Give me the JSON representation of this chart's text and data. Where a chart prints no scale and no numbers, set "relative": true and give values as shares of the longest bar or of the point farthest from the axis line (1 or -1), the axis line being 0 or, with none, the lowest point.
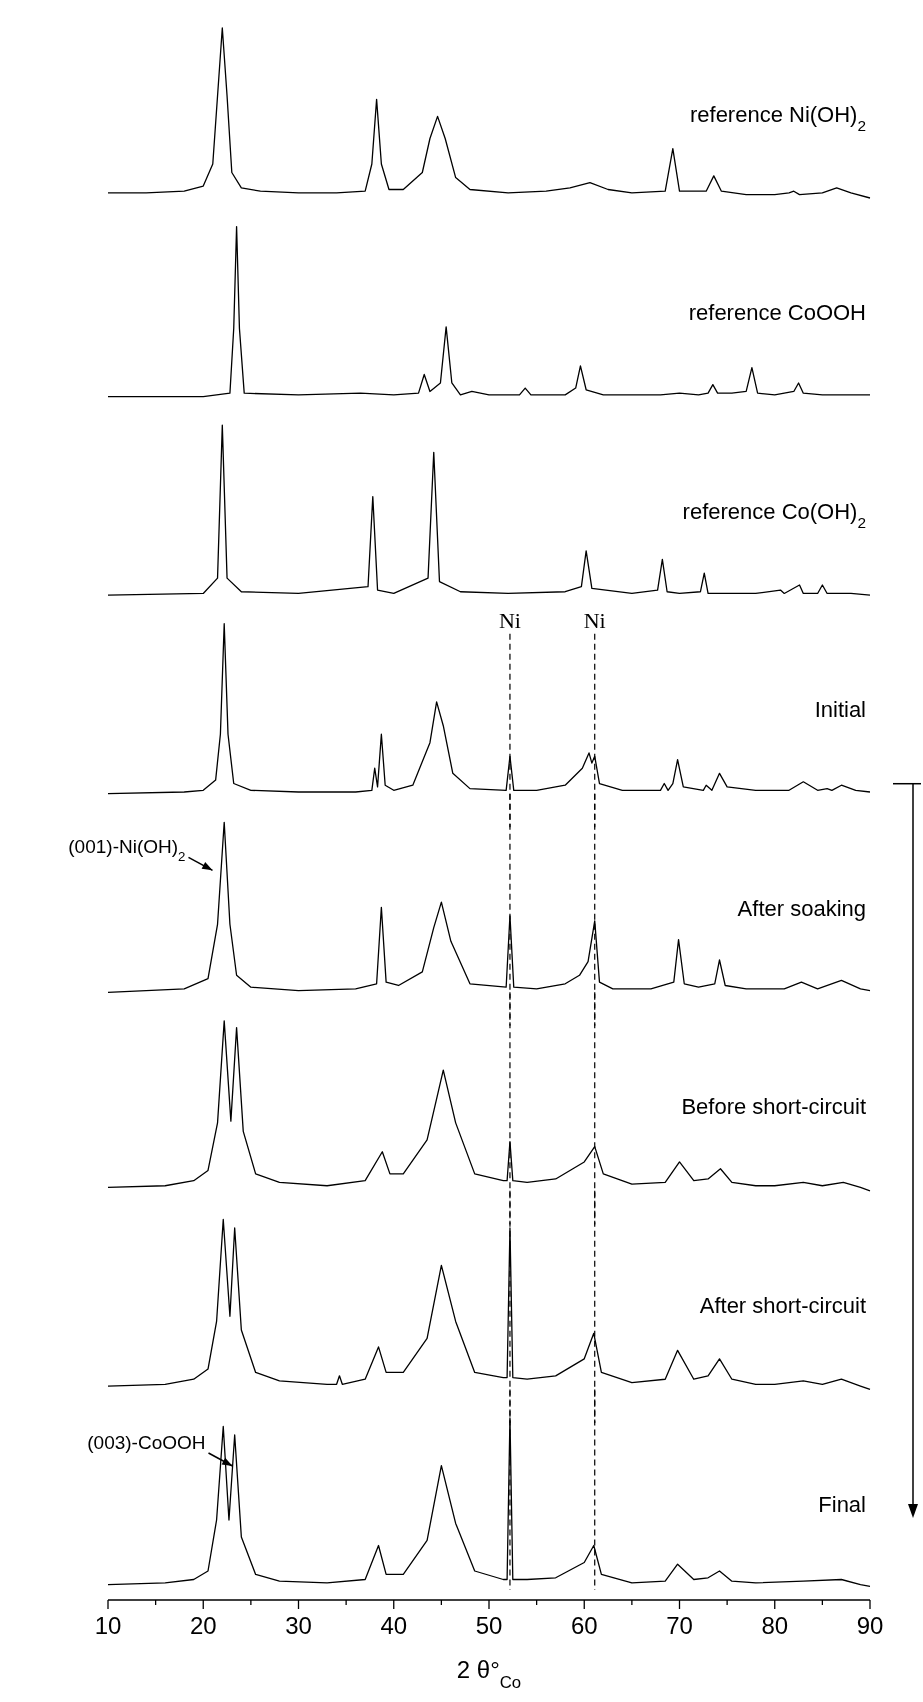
{
  "chart_data": [
    {
      "type": "line",
      "relative": true,
      "xlim": [
        10,
        90
      ],
      "tick_labels": false,
      "series": [
        {
          "name": "reference Ni(OH)$_{2}$",
          "color": "#000000",
          "x": [
            10,
            14,
            18,
            20,
            21,
            21.5,
            22,
            22.5,
            23,
            24,
            26,
            30,
            34,
            37,
            37.7,
            38.2,
            38.7,
            39.5,
            41,
            43,
            43.8,
            44.6,
            45.4,
            46.5,
            48,
            52,
            56,
            58.5,
            60.6,
            62.5,
            65,
            68.5,
            69.3,
            70,
            72.8,
            73.6,
            74.4,
            77,
            80,
            81.5,
            82,
            82.6,
            85,
            86.5,
            88,
            90
          ],
          "values": [
            0.03,
            0.03,
            0.04,
            0.07,
            0.2,
            0.6,
            1,
            0.6,
            0.15,
            0.06,
            0.04,
            0.03,
            0.03,
            0.04,
            0.2,
            0.58,
            0.2,
            0.05,
            0.05,
            0.15,
            0.35,
            0.48,
            0.35,
            0.12,
            0.05,
            0.03,
            0.04,
            0.06,
            0.09,
            0.05,
            0.03,
            0.04,
            0.29,
            0.04,
            0.04,
            0.13,
            0.04,
            0.02,
            0.02,
            0.03,
            0.04,
            0.02,
            0.03,
            0.06,
            0.03,
            0
          ]
        }
      ]
    },
    {
      "type": "line",
      "relative": true,
      "xlim": [
        10,
        90
      ],
      "tick_labels": false,
      "series": [
        {
          "name": "reference CoOOH",
          "color": "#000000",
          "x": [
            10,
            20,
            22.8,
            23.2,
            23.5,
            23.8,
            24.3,
            30,
            36.5,
            40,
            42.6,
            43.2,
            43.8,
            44.9,
            45.5,
            46.1,
            47,
            48.2,
            50,
            53.2,
            53.8,
            54.4,
            58,
            59.1,
            59.6,
            60.2,
            62,
            68,
            70,
            72,
            73,
            73.5,
            74,
            75.5,
            77,
            77.6,
            78.2,
            80,
            82,
            82.5,
            83,
            85,
            90
          ],
          "values": [
            0,
            0,
            0.02,
            0.4,
            1,
            0.4,
            0.02,
            0.01,
            0.02,
            0.01,
            0.02,
            0.13,
            0.03,
            0.08,
            0.41,
            0.08,
            0.01,
            0.03,
            0.01,
            0.01,
            0.05,
            0.01,
            0.01,
            0.05,
            0.18,
            0.04,
            0.01,
            0.01,
            0.02,
            0.01,
            0.02,
            0.07,
            0.02,
            0.02,
            0.03,
            0.17,
            0.02,
            0.01,
            0.03,
            0.08,
            0.02,
            0.01,
            0.01
          ]
        }
      ]
    },
    {
      "type": "line",
      "relative": true,
      "xlim": [
        10,
        90
      ],
      "tick_labels": false,
      "series": [
        {
          "name": "reference Co(OH)$_{2}$",
          "color": "#000000",
          "x": [
            10,
            20,
            21.5,
            22,
            22.5,
            24,
            30,
            37.3,
            37.8,
            38.3,
            40,
            43.6,
            44.2,
            44.8,
            47,
            52,
            58,
            59.7,
            60.2,
            60.8,
            65,
            67.7,
            68.2,
            68.7,
            70,
            72.2,
            72.6,
            73,
            78,
            80.6,
            81,
            82.6,
            83,
            84.5,
            85,
            85.5,
            88,
            90
          ],
          "values": [
            0,
            0.01,
            0.1,
            1,
            0.1,
            0.02,
            0.01,
            0.05,
            0.58,
            0.03,
            0.01,
            0.1,
            0.84,
            0.08,
            0.02,
            0.01,
            0.02,
            0.05,
            0.26,
            0.04,
            0.01,
            0.03,
            0.21,
            0.02,
            0.01,
            0.02,
            0.13,
            0.01,
            0.01,
            0.03,
            0.01,
            0.06,
            0.01,
            0.01,
            0.06,
            0.01,
            0.01,
            0
          ]
        }
      ]
    },
    {
      "type": "line",
      "relative": true,
      "xlim": [
        10,
        90
      ],
      "tick_labels": false,
      "ref_lines": [
        {
          "axis": "x",
          "value": 52.2,
          "label": "Ni",
          "color": "#000000",
          "line_style": "dashed"
        },
        {
          "axis": "x",
          "value": 61.1,
          "label": "Ni",
          "color": "#000000",
          "line_style": "dashed"
        }
      ],
      "series": [
        {
          "name": "Initial",
          "color": "#000000",
          "x": [
            10,
            18,
            20,
            21.3,
            21.8,
            22.2,
            22.6,
            23.2,
            25,
            30,
            36,
            37.7,
            38,
            38.3,
            38.7,
            39.1,
            40,
            42,
            43.8,
            44.5,
            45.2,
            46.2,
            48,
            51.8,
            52.2,
            52.6,
            55,
            58,
            59.8,
            60.5,
            60.8,
            61.1,
            61.6,
            64,
            68,
            68.4,
            68.8,
            69.3,
            69.8,
            70.4,
            72.5,
            72.8,
            73.4,
            74.2,
            75,
            78,
            81.5,
            83,
            84.5,
            85.5,
            86,
            87,
            88.5,
            90
          ],
          "values": [
            0,
            0.01,
            0.02,
            0.08,
            0.35,
            1,
            0.35,
            0.06,
            0.02,
            0.01,
            0.01,
            0.02,
            0.15,
            0.04,
            0.35,
            0.05,
            0.02,
            0.05,
            0.3,
            0.54,
            0.4,
            0.12,
            0.03,
            0.02,
            0.22,
            0.02,
            0.02,
            0.05,
            0.15,
            0.24,
            0.18,
            0.22,
            0.06,
            0.02,
            0.02,
            0.06,
            0.02,
            0.06,
            0.2,
            0.04,
            0.02,
            0.05,
            0.02,
            0.12,
            0.04,
            0.02,
            0.02,
            0.07,
            0.02,
            0.03,
            0.02,
            0.05,
            0.02,
            0.01
          ]
        }
      ]
    },
    {
      "type": "line",
      "relative": true,
      "xlim": [
        10,
        90
      ],
      "tick_labels": false,
      "annotations": [
        {
          "text": "(001)-Ni(OH)$_{2}$",
          "x": 21.6,
          "y": 0.7
        }
      ],
      "ref_lines": [
        {
          "axis": "x",
          "value": 52.2,
          "color": "#000000",
          "line_style": "dashed"
        },
        {
          "axis": "x",
          "value": 61.1,
          "color": "#000000",
          "line_style": "dashed"
        }
      ],
      "series": [
        {
          "name": "After soaking",
          "color": "#000000",
          "x": [
            10,
            18,
            20.5,
            21.5,
            22.2,
            22.8,
            23.5,
            25,
            30,
            36,
            38.2,
            38.7,
            39.2,
            40.5,
            43,
            44.2,
            45,
            46,
            48,
            51.8,
            52.2,
            52.6,
            55,
            58,
            59.5,
            60.4,
            61.1,
            61.6,
            63,
            67,
            69.4,
            69.9,
            70.5,
            72,
            73.7,
            74.2,
            74.8,
            77,
            81,
            82.8,
            84.5,
            87,
            89,
            90
          ],
          "values": [
            0,
            0.02,
            0.08,
            0.4,
            1,
            0.4,
            0.1,
            0.03,
            0.01,
            0.02,
            0.05,
            0.5,
            0.06,
            0.04,
            0.12,
            0.38,
            0.53,
            0.3,
            0.05,
            0.03,
            0.45,
            0.03,
            0.02,
            0.05,
            0.1,
            0.18,
            0.42,
            0.06,
            0.02,
            0.02,
            0.06,
            0.31,
            0.05,
            0.03,
            0.05,
            0.19,
            0.04,
            0.02,
            0.02,
            0.06,
            0.02,
            0.07,
            0.02,
            0.01
          ]
        }
      ]
    },
    {
      "type": "line",
      "relative": true,
      "xlim": [
        10,
        90
      ],
      "tick_labels": false,
      "ref_lines": [
        {
          "axis": "x",
          "value": 52.2,
          "color": "#000000",
          "line_style": "dashed"
        },
        {
          "axis": "x",
          "value": 61.1,
          "color": "#000000",
          "line_style": "dashed"
        }
      ],
      "series": [
        {
          "name": "Before short-circuit",
          "color": "#000000",
          "x": [
            10,
            16,
            19,
            20.5,
            21.5,
            22.2,
            22.9,
            23.5,
            24.2,
            25.5,
            28,
            33,
            37,
            38.8,
            39.6,
            41,
            43.5,
            45.2,
            46.5,
            48.5,
            51.5,
            51.9,
            52.2,
            52.5,
            54,
            57,
            60,
            61.1,
            62,
            65,
            68.5,
            70,
            71.5,
            73,
            74.3,
            75.5,
            78,
            80,
            83,
            85,
            87.2,
            89,
            90
          ],
          "values": [
            0.02,
            0.03,
            0.06,
            0.12,
            0.4,
            1,
            0.41,
            0.96,
            0.35,
            0.1,
            0.05,
            0.03,
            0.06,
            0.23,
            0.1,
            0.1,
            0.3,
            0.71,
            0.4,
            0.1,
            0.06,
            0.06,
            0.29,
            0.06,
            0.05,
            0.07,
            0.17,
            0.26,
            0.1,
            0.04,
            0.05,
            0.17,
            0.06,
            0.07,
            0.13,
            0.05,
            0.03,
            0.03,
            0.05,
            0.03,
            0.05,
            0.02,
            0
          ]
        }
      ]
    },
    {
      "type": "line",
      "relative": true,
      "xlim": [
        10,
        90
      ],
      "tick_labels": false,
      "ref_lines": [
        {
          "axis": "x",
          "value": 52.2,
          "color": "#000000",
          "line_style": "dashed"
        },
        {
          "axis": "x",
          "value": 61.1,
          "color": "#000000",
          "line_style": "dashed"
        }
      ],
      "series": [
        {
          "name": "After short-circuit",
          "color": "#000000",
          "x": [
            10,
            16,
            19,
            20.5,
            21.4,
            22.1,
            22.8,
            23.3,
            24,
            25.5,
            28,
            33,
            34,
            34.3,
            34.6,
            37,
            38.4,
            39.2,
            41,
            43.5,
            45,
            46.5,
            48.5,
            51.5,
            51.9,
            52.2,
            52.5,
            54,
            57,
            60,
            61,
            61.8,
            65,
            68.5,
            69.8,
            71.5,
            73,
            74.2,
            75.5,
            78,
            80,
            83,
            85,
            87,
            89,
            90
          ],
          "values": [
            0.02,
            0.03,
            0.06,
            0.12,
            0.4,
            1,
            0.43,
            0.95,
            0.35,
            0.1,
            0.05,
            0.03,
            0.03,
            0.08,
            0.03,
            0.06,
            0.25,
            0.1,
            0.1,
            0.3,
            0.73,
            0.4,
            0.1,
            0.07,
            0.07,
            0.95,
            0.07,
            0.06,
            0.08,
            0.18,
            0.33,
            0.1,
            0.04,
            0.06,
            0.23,
            0.06,
            0.08,
            0.18,
            0.06,
            0.03,
            0.03,
            0.05,
            0.03,
            0.06,
            0.02,
            0
          ]
        }
      ]
    },
    {
      "type": "line",
      "relative": true,
      "xlim": [
        10,
        90
      ],
      "tick_labels": "x",
      "xlabel": "2 θ°$_{Co}$",
      "xticks": [
        10,
        {
          "value": 15,
          "label": null
        },
        20,
        {
          "value": 25,
          "label": null
        },
        30,
        {
          "value": 35,
          "label": null
        },
        40,
        {
          "value": 45,
          "label": null
        },
        50,
        {
          "value": 55,
          "label": null
        },
        60,
        {
          "value": 65,
          "label": null
        },
        70,
        {
          "value": 75,
          "label": null
        },
        80,
        {
          "value": 85,
          "label": null
        },
        90
      ],
      "annotations": [
        {
          "text": "(003)-CoOOH",
          "x": 23.7,
          "y": 0.7
        }
      ],
      "ref_lines": [
        {
          "axis": "x",
          "value": 52.2,
          "color": "#000000",
          "line_style": "dashed"
        },
        {
          "axis": "x",
          "value": 61.1,
          "color": "#000000",
          "line_style": "dashed"
        }
      ],
      "series": [
        {
          "name": "Final",
          "color": "#000000",
          "x": [
            10,
            16,
            19,
            20.5,
            21.4,
            22.1,
            22.7,
            23.3,
            24,
            25.5,
            28,
            33,
            37,
            38.4,
            39.2,
            41,
            43.5,
            45,
            46.5,
            48.5,
            51.5,
            51.9,
            52.2,
            52.5,
            54,
            57,
            60,
            61,
            61.8,
            65,
            68.5,
            69.8,
            71.5,
            73,
            74.2,
            75.5,
            78,
            83,
            87,
            89,
            90
          ],
          "values": [
            0.02,
            0.03,
            0.05,
            0.1,
            0.4,
            0.95,
            0.4,
            0.9,
            0.3,
            0.08,
            0.04,
            0.03,
            0.05,
            0.25,
            0.08,
            0.08,
            0.28,
            0.72,
            0.38,
            0.1,
            0.05,
            0.05,
            1,
            0.05,
            0.05,
            0.06,
            0.15,
            0.25,
            0.08,
            0.03,
            0.04,
            0.14,
            0.05,
            0.06,
            0.1,
            0.04,
            0.03,
            0.04,
            0.05,
            0.02,
            0.01
          ]
        }
      ]
    }
  ]
}
